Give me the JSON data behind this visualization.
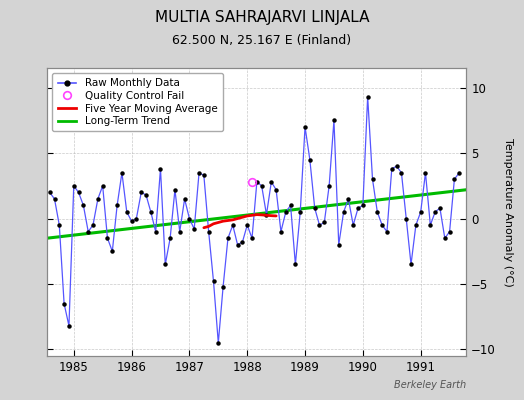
{
  "title": "MULTIA SAHRAJARVI LINJALA",
  "subtitle": "62.500 N, 25.167 E (Finland)",
  "ylabel": "Temperature Anomaly (°C)",
  "watermark": "Berkeley Earth",
  "bg_color": "#d4d4d4",
  "plot_bg_color": "#ffffff",
  "xlim": [
    1984.54,
    1991.79
  ],
  "ylim": [
    -10.5,
    11.5
  ],
  "yticks": [
    -10,
    -5,
    0,
    5,
    10
  ],
  "xticks": [
    1985,
    1986,
    1987,
    1988,
    1989,
    1990,
    1991
  ],
  "raw_x": [
    1984.583,
    1984.667,
    1984.75,
    1984.833,
    1984.917,
    1985.0,
    1985.083,
    1985.167,
    1985.25,
    1985.333,
    1985.417,
    1985.5,
    1985.583,
    1985.667,
    1985.75,
    1985.833,
    1985.917,
    1986.0,
    1986.083,
    1986.167,
    1986.25,
    1986.333,
    1986.417,
    1986.5,
    1986.583,
    1986.667,
    1986.75,
    1986.833,
    1986.917,
    1987.0,
    1987.083,
    1987.167,
    1987.25,
    1987.333,
    1987.417,
    1987.5,
    1987.583,
    1987.667,
    1987.75,
    1987.833,
    1987.917,
    1988.0,
    1988.083,
    1988.167,
    1988.25,
    1988.333,
    1988.417,
    1988.5,
    1988.583,
    1988.667,
    1988.75,
    1988.833,
    1988.917,
    1989.0,
    1989.083,
    1989.167,
    1989.25,
    1989.333,
    1989.417,
    1989.5,
    1989.583,
    1989.667,
    1989.75,
    1989.833,
    1989.917,
    1990.0,
    1990.083,
    1990.167,
    1990.25,
    1990.333,
    1990.417,
    1990.5,
    1990.583,
    1990.667,
    1990.75,
    1990.833,
    1990.917,
    1991.0,
    1991.083,
    1991.167,
    1991.25,
    1991.333,
    1991.417,
    1991.5,
    1991.583,
    1991.667
  ],
  "raw_y": [
    2.0,
    1.5,
    -0.5,
    -6.5,
    -8.2,
    2.5,
    2.0,
    1.0,
    -1.0,
    -0.5,
    1.5,
    2.5,
    -1.5,
    -2.5,
    1.0,
    3.5,
    0.5,
    -0.2,
    0.0,
    2.0,
    1.8,
    0.5,
    -1.0,
    3.8,
    -3.5,
    -1.5,
    2.2,
    -1.0,
    1.5,
    0.0,
    -0.8,
    3.5,
    3.3,
    -1.0,
    -4.8,
    -9.5,
    -5.2,
    -1.5,
    -0.5,
    -2.0,
    -1.8,
    -0.5,
    -1.5,
    2.8,
    2.5,
    0.3,
    2.8,
    2.2,
    -1.0,
    0.5,
    1.0,
    -3.5,
    0.5,
    7.0,
    4.5,
    0.8,
    -0.5,
    -0.3,
    2.5,
    7.5,
    -2.0,
    0.5,
    1.5,
    -0.5,
    0.8,
    1.0,
    9.3,
    3.0,
    0.5,
    -0.5,
    -1.0,
    3.8,
    4.0,
    3.5,
    0.0,
    -3.5,
    -0.5,
    0.5,
    3.5,
    -0.5,
    0.5,
    0.8,
    -1.5,
    -1.0,
    3.0,
    3.5
  ],
  "qc_fail_x": [
    1988.083
  ],
  "qc_fail_y": [
    2.8
  ],
  "moving_avg_x": [
    1987.25,
    1987.333,
    1987.417,
    1987.5,
    1987.583,
    1987.667,
    1987.75,
    1987.833,
    1987.917,
    1988.0,
    1988.083,
    1988.167,
    1988.25,
    1988.333,
    1988.417,
    1988.5
  ],
  "moving_avg_y": [
    -0.7,
    -0.6,
    -0.4,
    -0.3,
    -0.2,
    -0.15,
    -0.1,
    0.0,
    0.1,
    0.2,
    0.25,
    0.3,
    0.28,
    0.25,
    0.22,
    0.2
  ],
  "trend_x": [
    1984.54,
    1991.79
  ],
  "trend_y": [
    -1.5,
    2.2
  ],
  "line_color": "#5555ff",
  "dot_color": "#000000",
  "ma_color": "#ee0000",
  "trend_color": "#00bb00",
  "qc_color": "#ff44ff"
}
